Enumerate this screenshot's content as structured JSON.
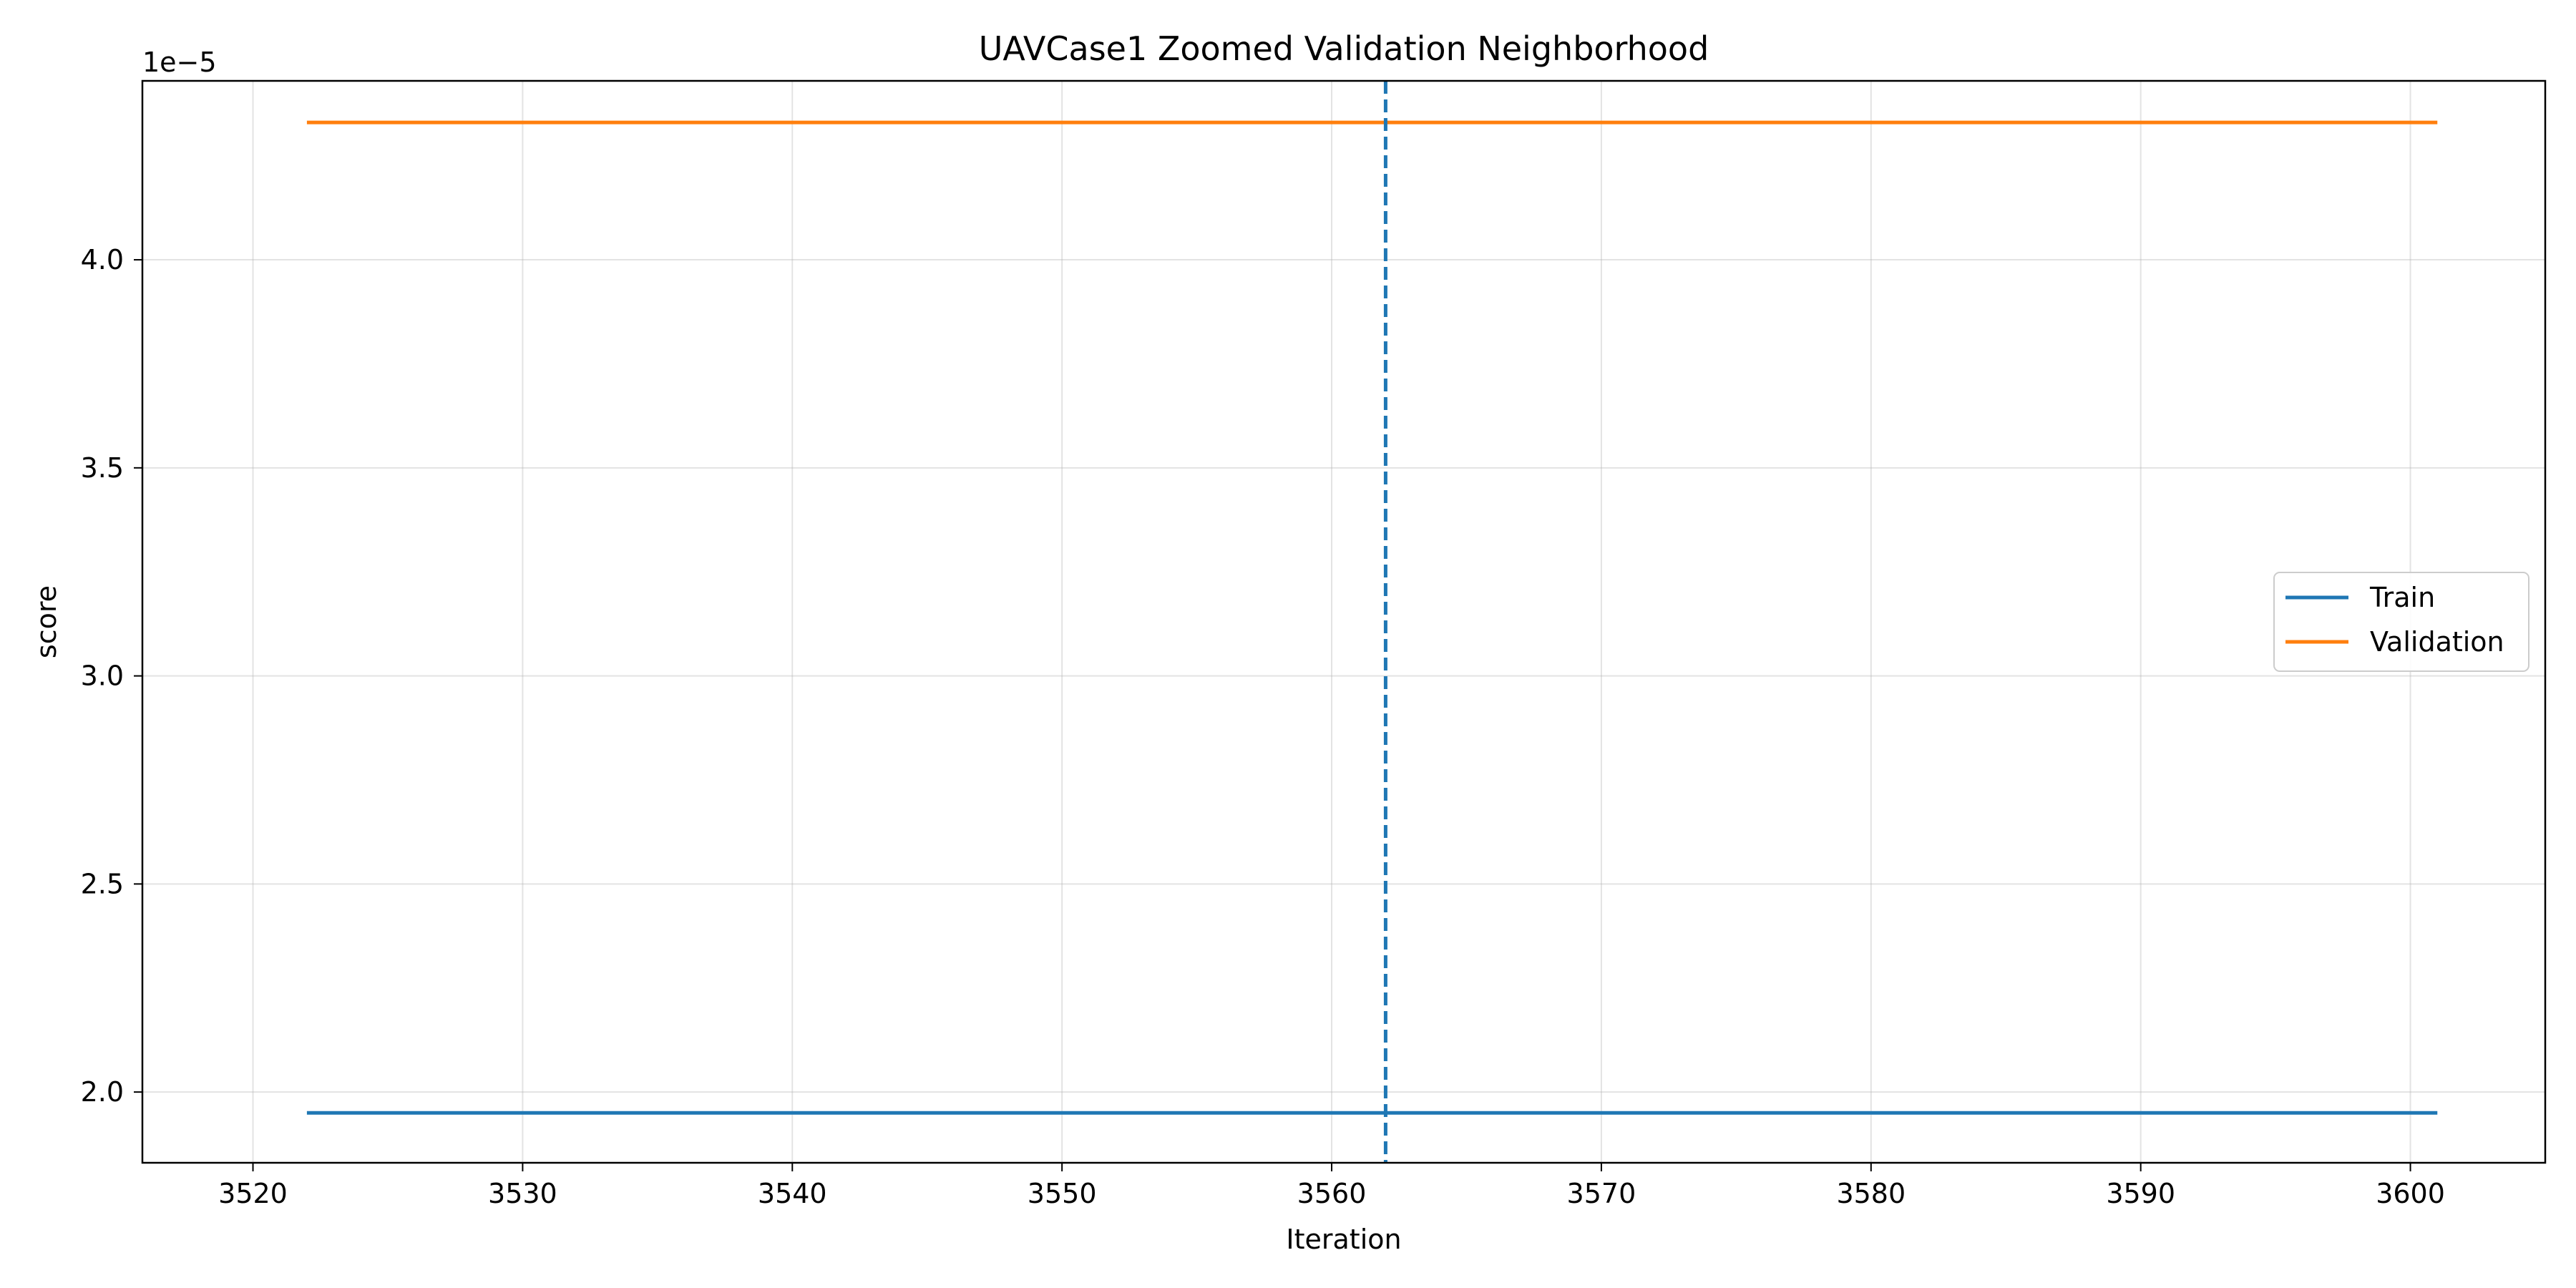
{
  "chart_data": {
    "type": "line",
    "title": "UAVCase1 Zoomed Validation Neighborhood",
    "xlabel": "Iteration",
    "ylabel": "score",
    "y_offset_label": "1e−5",
    "xlim": [
      3515.9,
      3605.0
    ],
    "ylim": [
      1.83,
      4.43
    ],
    "x_ticks": [
      3520,
      3530,
      3540,
      3550,
      3560,
      3570,
      3580,
      3590,
      3600
    ],
    "x_tick_labels": [
      "3520",
      "3530",
      "3540",
      "3550",
      "3560",
      "3570",
      "3580",
      "3590",
      "3600"
    ],
    "y_ticks": [
      2.0,
      2.5,
      3.0,
      3.5,
      4.0
    ],
    "y_tick_labels": [
      "2.0",
      "2.5",
      "3.0",
      "3.5",
      "4.0"
    ],
    "grid": true,
    "legend_position": "center-right",
    "series": [
      {
        "name": "Train",
        "color": "#1f77b4",
        "x": [
          3522,
          3601
        ],
        "y": [
          1.95,
          1.95
        ]
      },
      {
        "name": "Validation",
        "color": "#ff7f0e",
        "x": [
          3522,
          3601
        ],
        "y": [
          4.33,
          4.33
        ]
      }
    ],
    "vlines": [
      {
        "x": 3562,
        "color": "#1f77b4",
        "style": "dashed"
      }
    ]
  }
}
